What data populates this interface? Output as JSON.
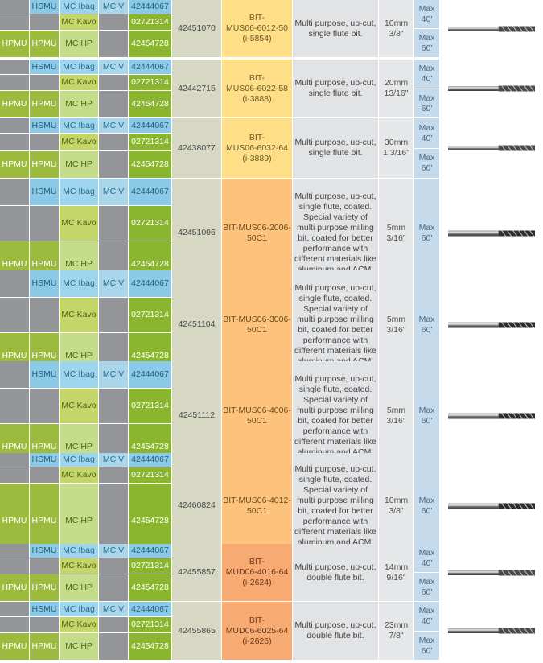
{
  "colors": {
    "hpmu": "#b7cf5c",
    "hsmu": "#8bc9e7",
    "mc_ibag": "#9fd5ec",
    "mc_kavo": "#c4d66a",
    "mc_hp": "#c5dd8b",
    "mc_v": "#a9d6ea",
    "order_no": "#93bb3a",
    "part_no": "#d7d8c4",
    "bit_yellow": "#fedf88",
    "bit_orange": "#fdc37c",
    "bit_dark_orange": "#f7aa72",
    "description": "#e2e3e5",
    "size": "#e6e7e8",
    "speed": "#c5daeb"
  },
  "groups": [
    {
      "machines": [
        {
          "hpmu": "",
          "hsmu": "HSMU",
          "mc": "MC Ibag",
          "mcv": "MC V",
          "code": "42444067"
        },
        {
          "hpmu": "",
          "hsmu": "",
          "mc": "MC Kavo",
          "mcv": "",
          "code": "02721314"
        },
        {
          "hpmu": "HPMU",
          "hsmu": "HPMU",
          "mc": "MC HP",
          "mcv": "",
          "code": "42454728"
        }
      ],
      "part_no": "42451070",
      "bit": "BIT-\nMUS06-6012-50\n(i-5854)",
      "bit_color": "yellow",
      "description": "Multi purpose, up-cut,\nsingle flute bit.",
      "size": "10mm\n3/8\"",
      "speeds": [
        "Max\n40'",
        "Max\n60'"
      ],
      "icon": "up-cut-single-flute-bit-icon"
    },
    {
      "machines": [
        {
          "hpmu": "",
          "hsmu": "HSMU",
          "mc": "MC Ibag",
          "mcv": "MC V",
          "code": "42444067"
        },
        {
          "hpmu": "",
          "hsmu": "",
          "mc": "MC Kavo",
          "mcv": "",
          "code": "02721314"
        },
        {
          "hpmu": "HPMU",
          "hsmu": "HPMU",
          "mc": "MC HP",
          "mcv": "",
          "code": "42454728"
        }
      ],
      "part_no": "42442715",
      "bit": "BIT-\nMUS06-6022-58\n(i-3888)",
      "bit_color": "yellow",
      "description": "Multi purpose, up-cut,\nsingle flute bit.",
      "size": "20mm\n13/16\"",
      "speeds": [
        "Max\n40'",
        "Max\n60'"
      ],
      "icon": "up-cut-single-flute-bit-icon"
    },
    {
      "machines": [
        {
          "hpmu": "",
          "hsmu": "HSMU",
          "mc": "MC Ibag",
          "mcv": "MC V",
          "code": "42444067"
        },
        {
          "hpmu": "",
          "hsmu": "",
          "mc": "MC Kavo",
          "mcv": "",
          "code": "02721314"
        },
        {
          "hpmu": "HPMU",
          "hsmu": "HPMU",
          "mc": "MC HP",
          "mcv": "",
          "code": "42454728"
        }
      ],
      "part_no": "42438077",
      "bit": "BIT-\nMUS06-6032-64\n(i-3889)",
      "bit_color": "yellow",
      "description": "Multi purpose, up-cut,\nsingle flute bit.",
      "size": "30mm\n1 3/16\"",
      "speeds": [
        "Max\n40'",
        "Max\n60'"
      ],
      "icon": "up-cut-single-flute-bit-icon"
    },
    {
      "machines": [
        {
          "hpmu": "",
          "hsmu": "HSMU",
          "mc": "MC Ibag",
          "mcv": "MC V",
          "code": "42444067"
        },
        {
          "hpmu": "",
          "hsmu": "",
          "mc": "MC Kavo",
          "mcv": "",
          "code": "02721314"
        },
        {
          "hpmu": "HPMU",
          "hsmu": "HPMU",
          "mc": "MC HP",
          "mcv": "",
          "code": "42454728"
        }
      ],
      "part_no": "42451096",
      "bit": "BIT-MUS06-2006-\n50C1",
      "bit_color": "orange",
      "description": "Multi purpose, up-cut,\nsingle flute, coated.\nSpecial variety of\nmulti purpose milling\nbit, coated for better\nperformance with\ndifferent materials like\naluminum and ACM.",
      "size": "5mm\n3/16\"",
      "speeds": [
        "Max\n60'"
      ],
      "icon": "coated-single-flute-bit-icon"
    },
    {
      "machines": [
        {
          "hpmu": "",
          "hsmu": "HSMU",
          "mc": "MC Ibag",
          "mcv": "MC V",
          "code": "42444067"
        },
        {
          "hpmu": "",
          "hsmu": "",
          "mc": "MC Kavo",
          "mcv": "",
          "code": "02721314"
        },
        {
          "hpmu": "HPMU",
          "hsmu": "HPMU",
          "mc": "MC HP",
          "mcv": "",
          "code": "42454728"
        }
      ],
      "part_no": "42451104",
      "bit": "BIT-MUS06-3006-\n50C1",
      "bit_color": "orange",
      "description": "Multi purpose, up-cut,\nsingle flute, coated.\nSpecial variety of\nmulti purpose milling\nbit, coated for better\nperformance with\ndifferent materials like\naluminum and ACM.",
      "size": "5mm\n3/16\"",
      "speeds": [
        "Max\n60'"
      ],
      "icon": "coated-single-flute-bit-icon"
    },
    {
      "machines": [
        {
          "hpmu": "",
          "hsmu": "HSMU",
          "mc": "MC Ibag",
          "mcv": "MC V",
          "code": "42444067"
        },
        {
          "hpmu": "",
          "hsmu": "",
          "mc": "MC Kavo",
          "mcv": "",
          "code": "02721314"
        },
        {
          "hpmu": "HPMU",
          "hsmu": "HPMU",
          "mc": "MC HP",
          "mcv": "",
          "code": "42454728"
        }
      ],
      "part_no": "42451112",
      "bit": "BIT-MUS06-4006-\n50C1",
      "bit_color": "orange",
      "description": "Multi purpose, up-cut,\nsingle flute, coated.\nSpecial variety of\nmulti purpose milling\nbit, coated for better\nperformance with\ndifferent materials like\naluminum and ACM.",
      "size": "5mm\n3/16\"",
      "speeds": [
        "Max\n60'"
      ],
      "icon": "coated-single-flute-bit-icon"
    },
    {
      "machines": [
        {
          "hpmu": "",
          "hsmu": "HSMU",
          "mc": "MC Ibag",
          "mcv": "MC V",
          "code": "42444067"
        },
        {
          "hpmu": "",
          "hsmu": "",
          "mc": "MC Kavo",
          "mcv": "",
          "code": "02721314"
        },
        {
          "hpmu": "HPMU",
          "hsmu": "HPMU",
          "mc": "MC HP",
          "mcv": "",
          "code": "42454728"
        }
      ],
      "part_no": "42460824",
      "bit": "BIT-MUS06-4012-\n50C1",
      "bit_color": "orange",
      "description": "Multi purpose, up-cut,\nsingle flute, coated.\nSpecial variety of\nmulti purpose milling\nbit, coated for better\nperformance with\ndifferent materials like\naluminum and ACM.",
      "size": "10mm\n3/8\"",
      "speeds": [
        "Max\n60'"
      ],
      "icon": "coated-single-flute-bit-icon"
    },
    {
      "machines": [
        {
          "hpmu": "",
          "hsmu": "HSMU",
          "mc": "MC Ibag",
          "mcv": "MC V",
          "code": "42444067"
        },
        {
          "hpmu": "",
          "hsmu": "",
          "mc": "MC Kavo",
          "mcv": "",
          "code": "02721314"
        },
        {
          "hpmu": "HPMU",
          "hsmu": "HPMU",
          "mc": "MC HP",
          "mcv": "",
          "code": "42454728"
        }
      ],
      "part_no": "42455857",
      "bit": "BIT-\nMUD06-4016-64\n(i-2624)",
      "bit_color": "dark-orange",
      "description": "Multi purpose, up-cut,\ndouble flute bit.",
      "size": "14mm\n9/16\"",
      "speeds": [
        "Max\n40'",
        "Max\n60'"
      ],
      "icon": "double-flute-bit-icon"
    },
    {
      "machines": [
        {
          "hpmu": "",
          "hsmu": "HSMU",
          "mc": "MC Ibag",
          "mcv": "MC V",
          "code": "42444067"
        },
        {
          "hpmu": "",
          "hsmu": "",
          "mc": "MC Kavo",
          "mcv": "",
          "code": "02721314"
        },
        {
          "hpmu": "HPMU",
          "hsmu": "HPMU",
          "mc": "MC HP",
          "mcv": "",
          "code": "42454728"
        }
      ],
      "part_no": "42455865",
      "bit": "BIT-\nMUD06-6025-64\n(i-2626)",
      "bit_color": "dark-orange",
      "description": "Multi purpose, up-cut,\ndouble flute bit.",
      "size": "23mm\n7/8\"",
      "speeds": [
        "Max\n40'",
        "Max\n60'"
      ],
      "icon": "double-flute-bit-icon"
    }
  ]
}
